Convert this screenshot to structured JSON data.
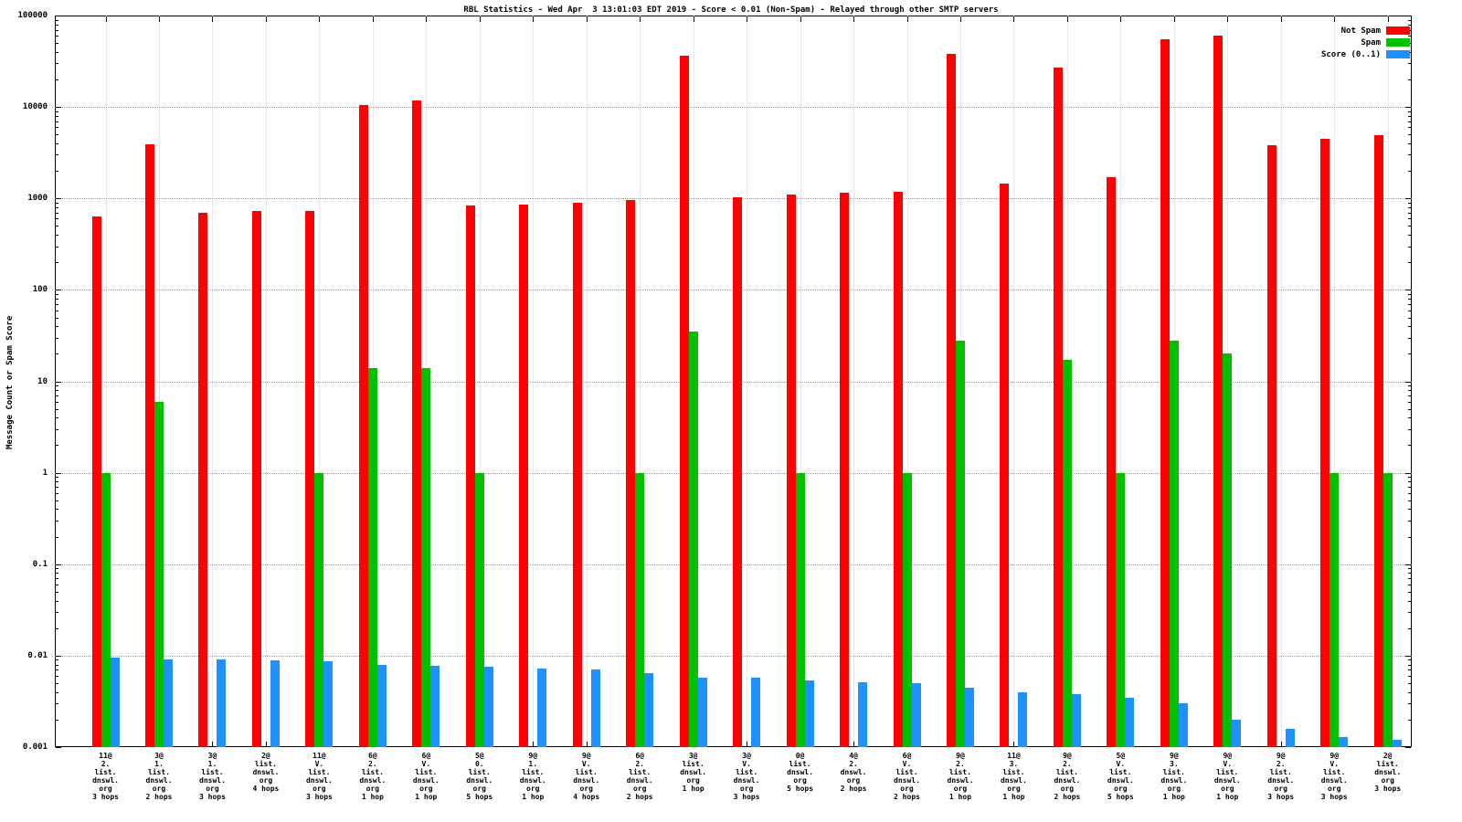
{
  "chart_data": {
    "type": "bar",
    "title": "RBL Statistics - Wed Apr  3 13:01:03 EDT 2019 - Score < 0.01 (Non-Spam) - Relayed through other SMTP servers",
    "ylabel": "Message Count or Spam Score",
    "xlabel": "",
    "y_scale": "log",
    "ylim": [
      0.001,
      100000
    ],
    "y_ticks": [
      "100000",
      "10000",
      "1000",
      "100",
      "10",
      "1",
      "0.1",
      "0.01",
      "0.001"
    ],
    "grid": true,
    "legend_position": "top-right",
    "categories": [
      [
        "11@",
        "2.",
        "list.",
        "dnswl.",
        "org",
        "3 hops"
      ],
      [
        "3@",
        "1.",
        "list.",
        "dnswl.",
        "org",
        "2 hops"
      ],
      [
        "3@",
        "1.",
        "list.",
        "dnswl.",
        "org",
        "3 hops"
      ],
      [
        "2@",
        "list.",
        "dnswl.",
        "org",
        "4 hops"
      ],
      [
        "11@",
        "V.",
        "list.",
        "dnswl.",
        "org",
        "3 hops"
      ],
      [
        "6@",
        "2.",
        "list.",
        "dnswl.",
        "org",
        "1 hop"
      ],
      [
        "6@",
        "V.",
        "list.",
        "dnswl.",
        "org",
        "1 hop"
      ],
      [
        "5@",
        "0.",
        "list.",
        "dnswl.",
        "org",
        "5 hops"
      ],
      [
        "9@",
        "1.",
        "list.",
        "dnswl.",
        "org",
        "1 hop"
      ],
      [
        "9@",
        "V.",
        "list.",
        "dnswl.",
        "org",
        "4 hops"
      ],
      [
        "6@",
        "2.",
        "list.",
        "dnswl.",
        "org",
        "2 hops"
      ],
      [
        "3@",
        "list.",
        "dnswl.",
        "org",
        "1 hop"
      ],
      [
        "3@",
        "V.",
        "list.",
        "dnswl.",
        "org",
        "3 hops"
      ],
      [
        "0@",
        "list.",
        "dnswl.",
        "org",
        "5 hops"
      ],
      [
        "4@",
        "2.",
        "dnswl.",
        "org",
        "2 hops"
      ],
      [
        "6@",
        "V.",
        "list.",
        "dnswl.",
        "org",
        "2 hops"
      ],
      [
        "9@",
        "2.",
        "list.",
        "dnswl.",
        "org",
        "1 hop"
      ],
      [
        "11@",
        "3.",
        "list.",
        "dnswl.",
        "org",
        "1 hop"
      ],
      [
        "9@",
        "2.",
        "list.",
        "dnswl.",
        "org",
        "2 hops"
      ],
      [
        "5@",
        "V.",
        "list.",
        "dnswl.",
        "org",
        "5 hops"
      ],
      [
        "9@",
        "3.",
        "list.",
        "dnswl.",
        "org",
        "1 hop"
      ],
      [
        "9@",
        "V.",
        "list.",
        "dnswl.",
        "org",
        "1 hop"
      ],
      [
        "9@",
        "2.",
        "list.",
        "dnswl.",
        "org",
        "3 hops"
      ],
      [
        "9@",
        "V.",
        "list.",
        "dnswl.",
        "org",
        "3 hops"
      ],
      [
        "2@",
        "list.",
        "dnswl.",
        "org",
        "3 hops"
      ]
    ],
    "series": [
      {
        "name": "Not Spam",
        "color": "#ff0000",
        "values": [
          640,
          3900,
          700,
          730,
          730,
          10500,
          11700,
          830,
          850,
          890,
          950,
          36000,
          1030,
          1100,
          1150,
          1190,
          38000,
          1450,
          27000,
          1700,
          55000,
          60000,
          3800,
          4500,
          4900
        ]
      },
      {
        "name": "Spam",
        "color": "#00c000",
        "values": [
          1,
          6,
          null,
          null,
          1,
          14,
          14,
          1,
          null,
          null,
          1,
          35,
          null,
          1,
          null,
          1,
          28,
          null,
          17,
          1,
          28,
          20,
          null,
          1,
          1
        ]
      },
      {
        "name": "Score (0..1)",
        "color": "#1e90ff",
        "values": [
          0.0095,
          0.009,
          0.009,
          0.0088,
          0.0087,
          0.008,
          0.0077,
          0.0075,
          0.0073,
          0.007,
          0.0065,
          0.0058,
          0.0058,
          0.0053,
          0.0051,
          0.005,
          0.0045,
          0.004,
          0.0038,
          0.0035,
          0.003,
          0.002,
          0.0016,
          0.0013,
          0.0012
        ]
      }
    ]
  }
}
